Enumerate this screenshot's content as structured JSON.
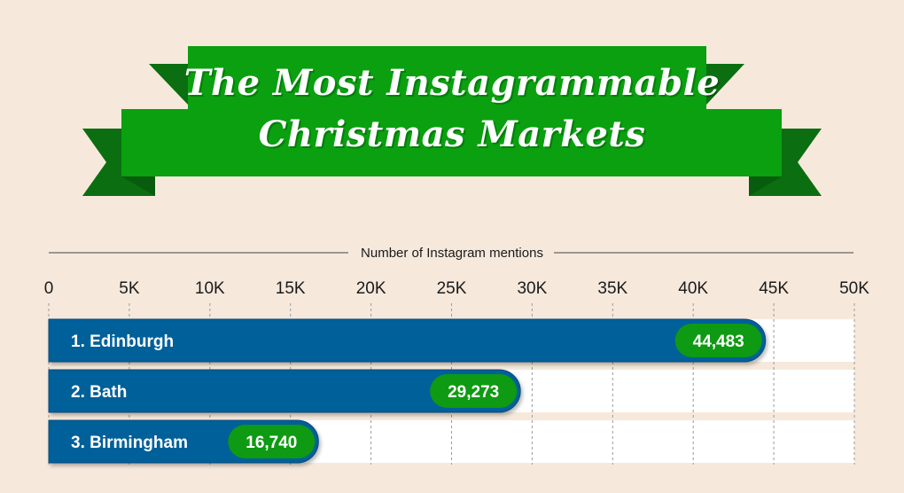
{
  "title_lines": [
    "The Most Instagrammable",
    "Christmas Markets"
  ],
  "colors": {
    "background": "#f6e9dc",
    "banner_green": "#0aa010",
    "banner_dark_green": "#0b6e10",
    "bar_blue": "#056199",
    "bar_blue_edge": "#0a4a7a",
    "value_pill_green": "#0e9a12",
    "track_white": "#ffffff"
  },
  "chart_data": {
    "type": "bar",
    "orientation": "horizontal",
    "title": "The Most Instagrammable Christmas Markets",
    "xlabel": "Number of Instagram mentions",
    "xlim": [
      0,
      50000
    ],
    "ticks": [
      0,
      5000,
      10000,
      15000,
      20000,
      25000,
      30000,
      35000,
      40000,
      45000,
      50000
    ],
    "tick_labels": [
      "0",
      "5K",
      "10K",
      "15K",
      "20K",
      "25K",
      "30K",
      "35K",
      "40K",
      "45K",
      "50K"
    ],
    "grid": true,
    "categories": [
      "1. Edinburgh",
      "2. Bath",
      "3. Birmingham"
    ],
    "values": [
      44483,
      29273,
      16740
    ],
    "value_labels": [
      "44,483",
      "29,273",
      "16,740"
    ]
  }
}
